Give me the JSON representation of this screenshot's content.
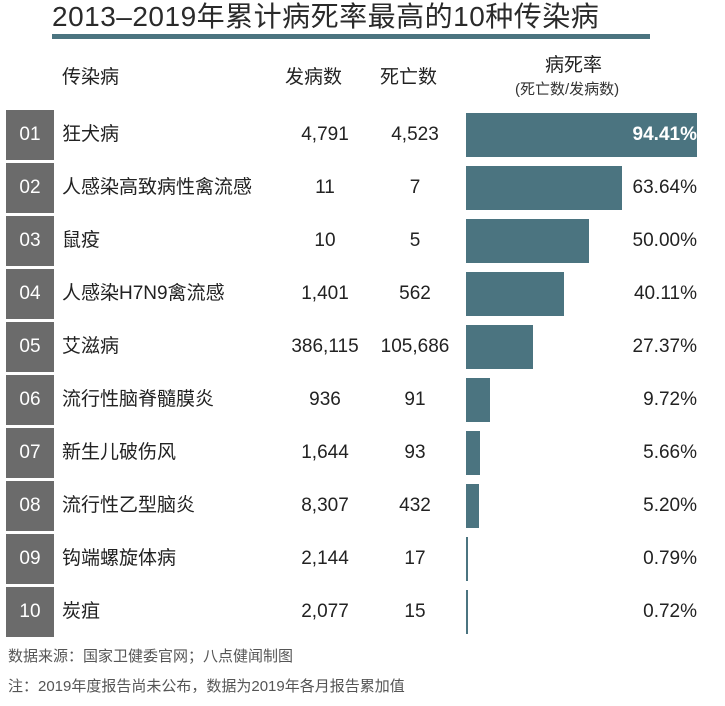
{
  "title": "2013–2019年累计病死率最高的10种传染病",
  "header": {
    "disease": "传染病",
    "cases": "发病数",
    "deaths": "死亡数",
    "rate": "病死率",
    "rate_sub": "(死亡数/发病数)"
  },
  "colors": {
    "bar": "#4b7480",
    "rank_bg": "#6b6b6b"
  },
  "chart_data": {
    "type": "bar",
    "orientation": "horizontal",
    "xlim": [
      0,
      100
    ],
    "rows": [
      {
        "rank": "01",
        "name": "狂犬病",
        "cases": "4,791",
        "deaths": "4,523",
        "rate": 94.41,
        "rate_label": "94.41%"
      },
      {
        "rank": "02",
        "name": "人感染高致病性禽流感",
        "cases": "11",
        "deaths": "7",
        "rate": 63.64,
        "rate_label": "63.64%"
      },
      {
        "rank": "03",
        "name": "鼠疫",
        "cases": "10",
        "deaths": "5",
        "rate": 50.0,
        "rate_label": "50.00%"
      },
      {
        "rank": "04",
        "name": "人感染H7N9禽流感",
        "cases": "1,401",
        "deaths": "562",
        "rate": 40.11,
        "rate_label": "40.11%"
      },
      {
        "rank": "05",
        "name": "艾滋病",
        "cases": "386,115",
        "deaths": "105,686",
        "rate": 27.37,
        "rate_label": "27.37%"
      },
      {
        "rank": "06",
        "name": "流行性脑脊髓膜炎",
        "cases": "936",
        "deaths": "91",
        "rate": 9.72,
        "rate_label": "9.72%"
      },
      {
        "rank": "07",
        "name": "新生儿破伤风",
        "cases": "1,644",
        "deaths": "93",
        "rate": 5.66,
        "rate_label": "5.66%"
      },
      {
        "rank": "08",
        "name": "流行性乙型脑炎",
        "cases": "8,307",
        "deaths": "432",
        "rate": 5.2,
        "rate_label": "5.20%"
      },
      {
        "rank": "09",
        "name": "钩端螺旋体病",
        "cases": "2,144",
        "deaths": "17",
        "rate": 0.79,
        "rate_label": "0.79%"
      },
      {
        "rank": "10",
        "name": "炭疽",
        "cases": "2,077",
        "deaths": "15",
        "rate": 0.72,
        "rate_label": "0.72%"
      }
    ]
  },
  "footer": {
    "source": "数据来源：国家卫健委官网；八点健闻制图",
    "note": "注：2019年度报告尚未公布，数据为2019年各月报告累加值"
  }
}
